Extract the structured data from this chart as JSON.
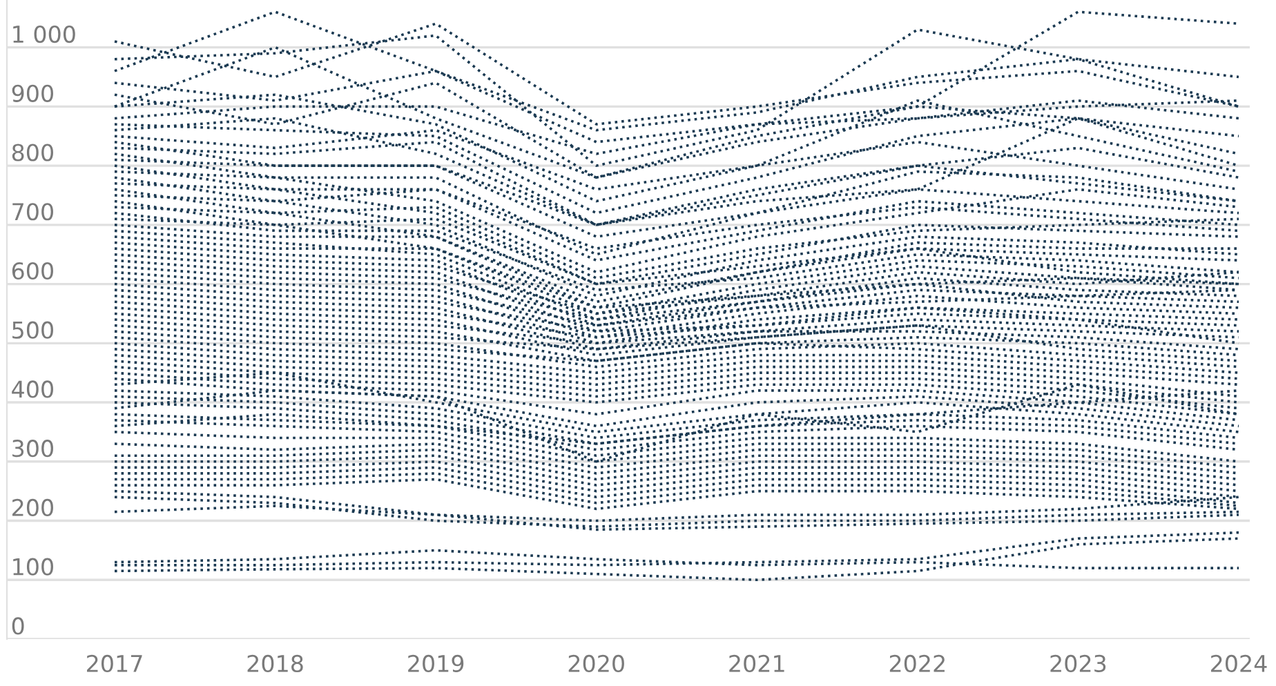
{
  "chart_data": {
    "type": "line",
    "categories": [
      "2017",
      "2018",
      "2019",
      "2020",
      "2021",
      "2022",
      "2023",
      "2024"
    ],
    "ylim": [
      0,
      1080
    ],
    "yticks": [
      0,
      100,
      200,
      300,
      400,
      500,
      600,
      700,
      800,
      900,
      {
        "value": 1000,
        "label": "1 000"
      }
    ],
    "grid": "y",
    "line_style": "dotted",
    "marker": "none",
    "series": [
      {
        "color": "#1b3a52",
        "values": [
          960,
          1060,
          960,
          840,
          870,
          900,
          880,
          850
        ]
      },
      {
        "color": "#1b3a52",
        "values": [
          1010,
          950,
          1040,
          870,
          900,
          940,
          960,
          900
        ]
      },
      {
        "color": "#1b3a52",
        "values": [
          980,
          990,
          1020,
          800,
          860,
          1030,
          980,
          900
        ]
      },
      {
        "color": "#1b3a52",
        "values": [
          900,
          1000,
          880,
          780,
          850,
          900,
          1060,
          1040
        ]
      },
      {
        "color": "#1b3a52",
        "values": [
          940,
          910,
          960,
          860,
          890,
          950,
          980,
          950
        ]
      },
      {
        "color": "#1b3a52",
        "values": [
          920,
          870,
          940,
          780,
          840,
          880,
          910,
          880
        ]
      },
      {
        "color": "#1b3a52",
        "values": [
          900,
          920,
          870,
          740,
          800,
          910,
          850,
          790
        ]
      },
      {
        "color": "#1b3a52",
        "values": [
          880,
          900,
          900,
          820,
          870,
          880,
          900,
          910
        ]
      },
      {
        "color": "#1b3a52",
        "values": [
          870,
          860,
          850,
          720,
          780,
          850,
          880,
          820
        ]
      },
      {
        "color": "#1b3a52",
        "values": [
          860,
          880,
          820,
          700,
          760,
          800,
          830,
          780
        ]
      },
      {
        "color": "#1b3a52",
        "values": [
          850,
          830,
          860,
          760,
          800,
          840,
          800,
          760
        ]
      },
      {
        "color": "#1b3a52",
        "values": [
          840,
          800,
          800,
          680,
          720,
          790,
          780,
          740
        ]
      },
      {
        "color": "#1b3a52",
        "values": [
          830,
          820,
          840,
          700,
          740,
          760,
          880,
          800
        ]
      },
      {
        "color": "#1b3a52",
        "values": [
          820,
          780,
          780,
          650,
          720,
          760,
          740,
          720
        ]
      },
      {
        "color": "#1b3a52",
        "values": [
          810,
          800,
          800,
          700,
          750,
          800,
          770,
          740
        ]
      },
      {
        "color": "#1b3a52",
        "values": [
          800,
          760,
          760,
          640,
          690,
          740,
          720,
          700
        ]
      },
      {
        "color": "#1b3a52",
        "values": [
          790,
          780,
          740,
          620,
          680,
          720,
          760,
          730
        ]
      },
      {
        "color": "#1b3a52",
        "values": [
          780,
          740,
          760,
          660,
          700,
          730,
          710,
          690
        ]
      },
      {
        "color": "#1b3a52",
        "values": [
          770,
          760,
          720,
          600,
          650,
          700,
          690,
          680
        ]
      },
      {
        "color": "#1b3a52",
        "values": [
          760,
          720,
          730,
          610,
          660,
          690,
          700,
          710
        ]
      },
      {
        "color": "#1b3a52",
        "values": [
          750,
          740,
          700,
          580,
          640,
          680,
          670,
          650
        ]
      },
      {
        "color": "#1b3a52",
        "values": [
          740,
          700,
          710,
          600,
          630,
          660,
          650,
          640
        ]
      },
      {
        "color": "#1b3a52",
        "values": [
          730,
          720,
          680,
          560,
          620,
          670,
          660,
          660
        ]
      },
      {
        "color": "#1b3a52",
        "values": [
          720,
          690,
          690,
          590,
          610,
          650,
          640,
          620
        ]
      },
      {
        "color": "#1b3a52",
        "values": [
          710,
          700,
          660,
          550,
          600,
          640,
          630,
          610
        ]
      },
      {
        "color": "#1b3a52",
        "values": [
          700,
          680,
          680,
          570,
          620,
          660,
          620,
          600
        ]
      },
      {
        "color": "#1b3a52",
        "values": [
          690,
          670,
          650,
          540,
          590,
          630,
          610,
          590
        ]
      },
      {
        "color": "#1b3a52",
        "values": [
          680,
          660,
          660,
          560,
          580,
          620,
          600,
          620
        ]
      },
      {
        "color": "#1b3a52",
        "values": [
          670,
          650,
          640,
          530,
          570,
          610,
          590,
          580
        ]
      },
      {
        "color": "#1b3a52",
        "values": [
          660,
          640,
          630,
          550,
          580,
          600,
          610,
          600
        ]
      },
      {
        "color": "#1b3a52",
        "values": [
          650,
          630,
          620,
          520,
          560,
          590,
          580,
          570
        ]
      },
      {
        "color": "#1b3a52",
        "values": [
          640,
          620,
          610,
          540,
          570,
          600,
          570,
          560
        ]
      },
      {
        "color": "#1b3a52",
        "values": [
          630,
          610,
          600,
          510,
          550,
          580,
          560,
          550
        ]
      },
      {
        "color": "#1b3a52",
        "values": [
          620,
          600,
          590,
          530,
          560,
          570,
          580,
          590
        ]
      },
      {
        "color": "#1b3a52",
        "values": [
          610,
          590,
          580,
          500,
          540,
          560,
          550,
          540
        ]
      },
      {
        "color": "#1b3a52",
        "values": [
          600,
          580,
          570,
          520,
          530,
          550,
          540,
          530
        ]
      },
      {
        "color": "#1b3a52",
        "values": [
          590,
          570,
          560,
          490,
          520,
          540,
          530,
          520
        ]
      },
      {
        "color": "#1b3a52",
        "values": [
          580,
          560,
          550,
          510,
          530,
          560,
          540,
          500
        ]
      },
      {
        "color": "#1b3a52",
        "values": [
          570,
          550,
          540,
          480,
          510,
          530,
          520,
          510
        ]
      },
      {
        "color": "#1b3a52",
        "values": [
          560,
          540,
          530,
          500,
          520,
          520,
          510,
          490
        ]
      },
      {
        "color": "#1b3a52",
        "values": [
          550,
          530,
          520,
          470,
          500,
          510,
          500,
          480
        ]
      },
      {
        "color": "#1b3a52",
        "values": [
          540,
          520,
          510,
          490,
          510,
          530,
          490,
          470
        ]
      },
      {
        "color": "#1b3a52",
        "values": [
          530,
          510,
          500,
          460,
          490,
          500,
          480,
          460
        ]
      },
      {
        "color": "#1b3a52",
        "values": [
          520,
          500,
          490,
          470,
          500,
          490,
          470,
          450
        ]
      },
      {
        "color": "#1b3a52",
        "values": [
          510,
          490,
          480,
          450,
          480,
          480,
          460,
          440
        ]
      },
      {
        "color": "#1b3a52",
        "values": [
          500,
          480,
          470,
          440,
          470,
          470,
          450,
          430
        ]
      },
      {
        "color": "#1b3a52",
        "values": [
          490,
          470,
          460,
          430,
          460,
          460,
          440,
          410
        ]
      },
      {
        "color": "#1b3a52",
        "values": [
          480,
          460,
          450,
          420,
          450,
          450,
          430,
          400
        ]
      },
      {
        "color": "#1b3a52",
        "values": [
          470,
          450,
          440,
          410,
          440,
          440,
          420,
          390
        ]
      },
      {
        "color": "#1b3a52",
        "values": [
          460,
          440,
          430,
          400,
          430,
          430,
          410,
          380
        ]
      },
      {
        "color": "#1b3a52",
        "values": [
          450,
          430,
          420,
          380,
          420,
          420,
          400,
          370
        ]
      },
      {
        "color": "#1b3a52",
        "values": [
          440,
          420,
          410,
          360,
          400,
          410,
          390,
          360
        ]
      },
      {
        "color": "#1b3a52",
        "values": [
          430,
          450,
          400,
          350,
          380,
          400,
          380,
          350
        ]
      },
      {
        "color": "#1b3a52",
        "values": [
          420,
          410,
          390,
          340,
          370,
          380,
          370,
          340
        ]
      },
      {
        "color": "#1b3a52",
        "values": [
          410,
          400,
          380,
          330,
          360,
          370,
          360,
          330
        ]
      },
      {
        "color": "#1b3a52",
        "values": [
          400,
          390,
          370,
          320,
          350,
          360,
          350,
          320
        ]
      },
      {
        "color": "#1b3a52",
        "values": [
          390,
          420,
          410,
          300,
          380,
          350,
          430,
          380
        ]
      },
      {
        "color": "#1b3a52",
        "values": [
          380,
          370,
          360,
          310,
          340,
          340,
          330,
          300
        ]
      },
      {
        "color": "#1b3a52",
        "values": [
          370,
          360,
          350,
          300,
          330,
          330,
          320,
          290
        ]
      },
      {
        "color": "#1b3a52",
        "values": [
          360,
          380,
          360,
          330,
          360,
          380,
          400,
          420
        ]
      },
      {
        "color": "#1b3a52",
        "values": [
          350,
          340,
          340,
          290,
          320,
          320,
          310,
          280
        ]
      },
      {
        "color": "#1b3a52",
        "values": [
          330,
          320,
          330,
          280,
          310,
          310,
          300,
          270
        ]
      },
      {
        "color": "#1b3a52",
        "values": [
          310,
          310,
          320,
          270,
          300,
          300,
          290,
          260
        ]
      },
      {
        "color": "#1b3a52",
        "values": [
          300,
          300,
          310,
          260,
          290,
          290,
          280,
          250
        ]
      },
      {
        "color": "#1b3a52",
        "values": [
          290,
          290,
          300,
          250,
          280,
          280,
          270,
          240
        ]
      },
      {
        "color": "#1b3a52",
        "values": [
          280,
          280,
          290,
          240,
          270,
          270,
          260,
          230
        ]
      },
      {
        "color": "#1b3a52",
        "values": [
          270,
          270,
          280,
          230,
          260,
          260,
          250,
          225
        ]
      },
      {
        "color": "#1b3a52",
        "values": [
          260,
          260,
          270,
          220,
          250,
          250,
          240,
          220
        ]
      },
      {
        "color": "#1b3a52",
        "values": [
          250,
          240,
          210,
          200,
          210,
          210,
          220,
          240
        ]
      },
      {
        "color": "#1b3a52",
        "values": [
          240,
          230,
          200,
          190,
          200,
          200,
          210,
          215
        ]
      },
      {
        "color": "#1b3a52",
        "values": [
          215,
          225,
          210,
          185,
          190,
          195,
          200,
          210
        ]
      },
      {
        "color": "#1b3a52",
        "values": [
          130,
          135,
          150,
          135,
          125,
          130,
          120,
          120
        ]
      },
      {
        "color": "#1b3a52",
        "values": [
          125,
          125,
          130,
          125,
          130,
          135,
          170,
          180
        ]
      },
      {
        "color": "#1b3a52",
        "values": [
          115,
          118,
          120,
          110,
          100,
          115,
          160,
          170
        ]
      }
    ]
  }
}
